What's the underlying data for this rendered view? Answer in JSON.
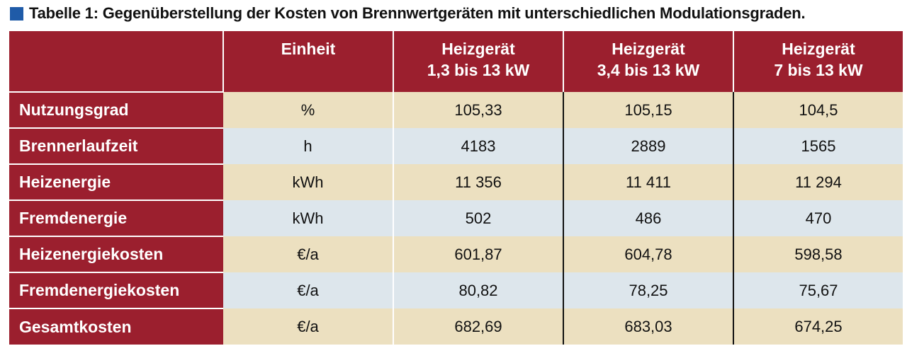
{
  "caption": "Tabelle 1: Gegenüberstellung der Kosten von Brennwertgeräten mit unterschiedlichen Modulationsgraden.",
  "colors": {
    "header_red": "#9b1f2e",
    "row_tan": "#ece0c0",
    "row_blue": "#dde6ec",
    "caption_square": "#1f5ba8"
  },
  "header": {
    "unit": "Einheit",
    "devices": [
      {
        "line1": "Heizgerät",
        "line2": "1,3 bis 13 kW"
      },
      {
        "line1": "Heizgerät",
        "line2": "3,4 bis 13 kW"
      },
      {
        "line1": "Heizgerät",
        "line2": "7 bis 13 kW"
      }
    ]
  },
  "rows": [
    {
      "label": "Nutzungsgrad",
      "unit": "%",
      "values": [
        "105,33",
        "105,15",
        "104,5"
      ]
    },
    {
      "label": "Brennerlaufzeit",
      "unit": "h",
      "values": [
        "4183",
        "2889",
        "1565"
      ]
    },
    {
      "label": "Heizenergie",
      "unit": "kWh",
      "values": [
        "11 356",
        "11 411",
        "11 294"
      ]
    },
    {
      "label": "Fremdenergie",
      "unit": "kWh",
      "values": [
        "502",
        "486",
        "470"
      ]
    },
    {
      "label": "Heizenergiekosten",
      "unit": "€/a",
      "values": [
        "601,87",
        "604,78",
        "598,58"
      ]
    },
    {
      "label": "Fremdenergiekosten",
      "unit": "€/a",
      "values": [
        "80,82",
        "78,25",
        "75,67"
      ]
    },
    {
      "label": "Gesamtkosten",
      "unit": "€/a",
      "values": [
        "682,69",
        "683,03",
        "674,25"
      ]
    }
  ]
}
